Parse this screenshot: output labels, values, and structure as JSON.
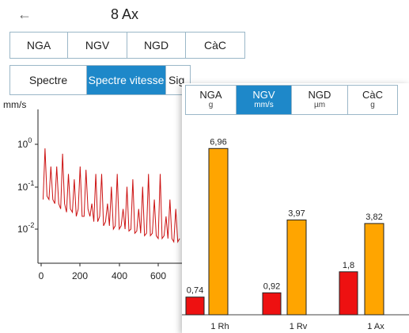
{
  "header": {
    "back_icon": "arrow-left-icon",
    "title": "8 Ax"
  },
  "measure_tabs": [
    {
      "label": "NGA"
    },
    {
      "label": "NGV"
    },
    {
      "label": "NGD"
    },
    {
      "label": "CàC"
    }
  ],
  "view_tabs": [
    {
      "label": "Spectre",
      "active": false
    },
    {
      "label": "Spectre vitesse",
      "active": true
    },
    {
      "label": "Sig",
      "active": false
    }
  ],
  "popup_tabs": [
    {
      "label": "NGA",
      "unit": "g",
      "active": false
    },
    {
      "label": "NGV",
      "unit": "mm/s",
      "active": true
    },
    {
      "label": "NGD",
      "unit": "µm",
      "active": false
    },
    {
      "label": "CàC",
      "unit": "g",
      "active": false
    }
  ],
  "colors": {
    "accent": "#1e88c9",
    "spectrum_line": "#cc1111",
    "bar_red": "#ee1111",
    "bar_orange": "#ffa500"
  },
  "chart_data": [
    {
      "type": "line",
      "ylabel": "mm/s",
      "yscale": "log",
      "ylim": [
        0.003,
        3
      ],
      "xlim": [
        0,
        720
      ],
      "x_ticks": [
        "0",
        "200",
        "400",
        "600"
      ],
      "y_ticks": [
        "10^0",
        "10^-1",
        "10^-2"
      ],
      "series": [
        {
          "x": [
            10,
            20,
            30,
            40,
            50,
            60,
            70,
            80,
            90,
            100,
            110,
            120,
            130,
            140,
            150,
            160,
            170,
            180,
            190,
            200,
            210,
            220,
            230,
            240,
            250,
            260,
            270,
            280,
            290,
            300,
            310,
            320,
            330,
            340,
            350,
            360,
            370,
            380,
            390,
            400,
            410,
            420,
            430,
            440,
            450,
            460,
            470,
            480,
            490,
            500,
            510,
            520,
            530,
            540,
            550,
            560,
            570,
            580,
            590,
            600,
            610,
            620,
            630,
            640,
            650,
            660,
            670,
            680,
            690,
            700,
            710
          ],
          "y": [
            0.05,
            0.8,
            0.06,
            0.05,
            0.3,
            0.05,
            0.04,
            0.3,
            0.04,
            0.03,
            0.6,
            0.04,
            0.025,
            0.2,
            0.03,
            0.025,
            0.15,
            0.02,
            0.03,
            0.3,
            0.02,
            0.02,
            0.25,
            0.03,
            0.02,
            0.04,
            0.015,
            0.2,
            0.015,
            0.02,
            0.2,
            0.012,
            0.015,
            0.04,
            0.012,
            0.1,
            0.01,
            0.012,
            0.2,
            0.01,
            0.012,
            0.03,
            0.01,
            0.1,
            0.009,
            0.01,
            0.15,
            0.008,
            0.009,
            0.03,
            0.008,
            0.1,
            0.007,
            0.008,
            0.2,
            0.007,
            0.008,
            0.05,
            0.007,
            0.006,
            0.2,
            0.006,
            0.007,
            0.02,
            0.006,
            0.05,
            0.006,
            0.005,
            0.03,
            0.005,
            0.006
          ]
        }
      ]
    },
    {
      "type": "bar",
      "categories": [
        "1 Rh",
        "1 Rv",
        "1 Ax"
      ],
      "ylim": [
        0,
        7.5
      ],
      "series": [
        {
          "values": [
            0.74,
            0.92,
            1.8
          ],
          "labels": [
            "0,74",
            "0,92",
            "1,8"
          ]
        },
        {
          "values": [
            6.96,
            3.97,
            3.82
          ],
          "labels": [
            "6,96",
            "3,97",
            "3,82"
          ]
        }
      ]
    }
  ]
}
